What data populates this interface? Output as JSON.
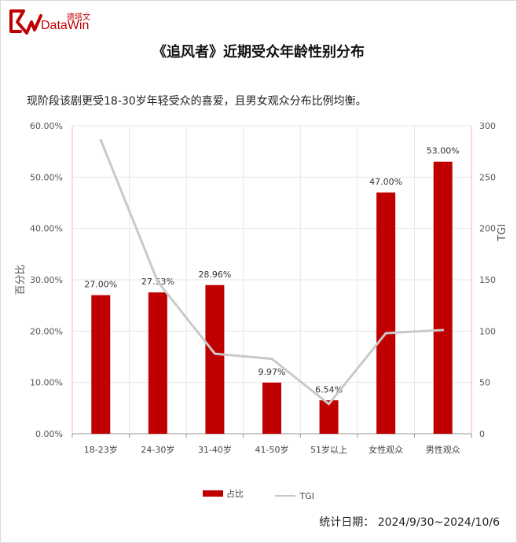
{
  "logo": {
    "cn_text": "德塔文",
    "en_text": "DataWin"
  },
  "title": "《追风者》近期受众年龄性别分布",
  "subtitle": "现阶段该剧更受18-30岁年轻受众的喜爱，且男女观众分布比例均衡。",
  "footer": {
    "date_text": "统计日期： 2024/9/30~2024/10/6"
  },
  "colors": {
    "bar": "#c00000",
    "line": "#c9c9c9",
    "grid": "#e6e6e6",
    "brand": "#c00000"
  },
  "chart_data": {
    "type": "bar",
    "categories": [
      "18-23岁",
      "24-30岁",
      "31-40岁",
      "41-50岁",
      "51岁以上",
      "女性观众",
      "男性观众"
    ],
    "series": [
      {
        "name": "占比",
        "type": "bar",
        "axis": "left",
        "values": [
          27.0,
          27.53,
          28.96,
          9.97,
          6.54,
          47.0,
          53.0
        ],
        "labels": [
          "27.00%",
          "27.53%",
          "28.96%",
          "9.97%",
          "6.54%",
          "47.00%",
          "53.00%"
        ]
      },
      {
        "name": "TGI",
        "type": "line",
        "axis": "right",
        "values": [
          286,
          148,
          78,
          73,
          29,
          98,
          101
        ]
      }
    ],
    "ylabel": "百分比",
    "y2label": "TGI",
    "ylim": [
      0,
      60
    ],
    "y2lim": [
      0,
      300
    ],
    "yticks": [
      "0.00%",
      "10.00%",
      "20.00%",
      "30.00%",
      "40.00%",
      "50.00%",
      "60.00%"
    ],
    "y2ticks": [
      "0",
      "50",
      "100",
      "150",
      "200",
      "250",
      "300"
    ],
    "grid": true,
    "legend_position": "bottom"
  }
}
